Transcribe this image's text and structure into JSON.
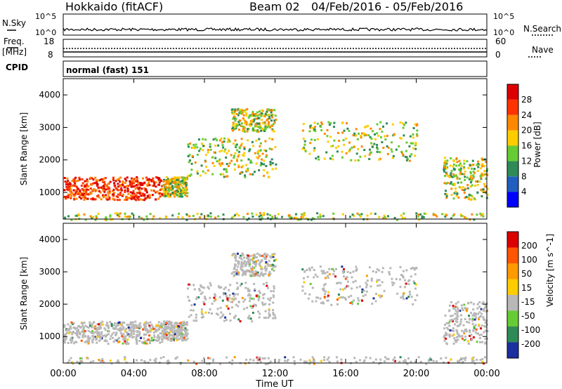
{
  "header": {
    "station": "Hokkaido (fitACF)",
    "beam": "Beam 02",
    "date_range": "04/Feb/2016 - 05/Feb/2016"
  },
  "strips": {
    "nsky_label": "N.Sky",
    "nsky_ticks": [
      "10^5",
      "10^0"
    ],
    "nsearch_label": "N.Search",
    "nsearch_ticks": [
      "10^5",
      "10^0"
    ],
    "freq_label": "Freq.",
    "freq_unit": "[MHz]",
    "freq_ticks": [
      "18",
      "8"
    ],
    "nave_label": "Nave",
    "nave_ticks": [
      "60",
      "0"
    ],
    "cpid_label": "CPID",
    "cpid_value": "normal (fast) 151"
  },
  "chart_data": [
    {
      "type": "heatmap",
      "panel": "power",
      "ylabel": "Slant Range [km]",
      "y_ticks": [
        "1000",
        "2000",
        "3000",
        "4000"
      ],
      "ylim": [
        180,
        4500
      ],
      "xlim": [
        0,
        24
      ],
      "colorbar_label": "Power [dB]",
      "colorbar_ticks": [
        "28",
        "24",
        "20",
        "16",
        "12",
        "8",
        "4"
      ],
      "colorbar_colors": [
        "#0000ff",
        "#1f5fbf",
        "#2e8b57",
        "#66cc33",
        "#ffcc00",
        "#ff8800",
        "#ff3300",
        "#dd0000"
      ],
      "scatter_regions": [
        {
          "t": [
            0.0,
            5.6
          ],
          "r": [
            800,
            1500
          ]
        },
        {
          "t": [
            5.6,
            7.0
          ],
          "r": [
            900,
            1500
          ]
        },
        {
          "t": [
            7.0,
            12.0
          ],
          "r": [
            1500,
            2700
          ]
        },
        {
          "t": [
            9.5,
            12.0
          ],
          "r": [
            2900,
            3600
          ]
        },
        {
          "t": [
            13.5,
            20.0
          ],
          "r": [
            2000,
            3200
          ]
        },
        {
          "t": [
            21.5,
            24.0
          ],
          "r": [
            800,
            2100
          ]
        },
        {
          "t": [
            0.0,
            24.0
          ],
          "r": [
            180,
            400
          ]
        }
      ]
    },
    {
      "type": "heatmap",
      "panel": "velocity",
      "ylabel": "Slant Range [km]",
      "y_ticks": [
        "1000",
        "2000",
        "3000",
        "4000"
      ],
      "ylim": [
        180,
        4500
      ],
      "xlim": [
        0,
        24
      ],
      "colorbar_label": "Velocity [m s^-1]",
      "colorbar_ticks": [
        "200",
        "100",
        "50",
        "15",
        "-15",
        "-50",
        "-100",
        "-200"
      ],
      "colorbar_colors": [
        "#1a2fa0",
        "#2e8b57",
        "#66cc33",
        "#b8b8b8",
        "#ffcc00",
        "#ff9900",
        "#ff5500",
        "#dd0000"
      ],
      "x_ticks": [
        "00:00",
        "04:00",
        "08:00",
        "12:00",
        "16:00",
        "20:00",
        "00:00"
      ],
      "xlabel": "Time UT"
    }
  ]
}
